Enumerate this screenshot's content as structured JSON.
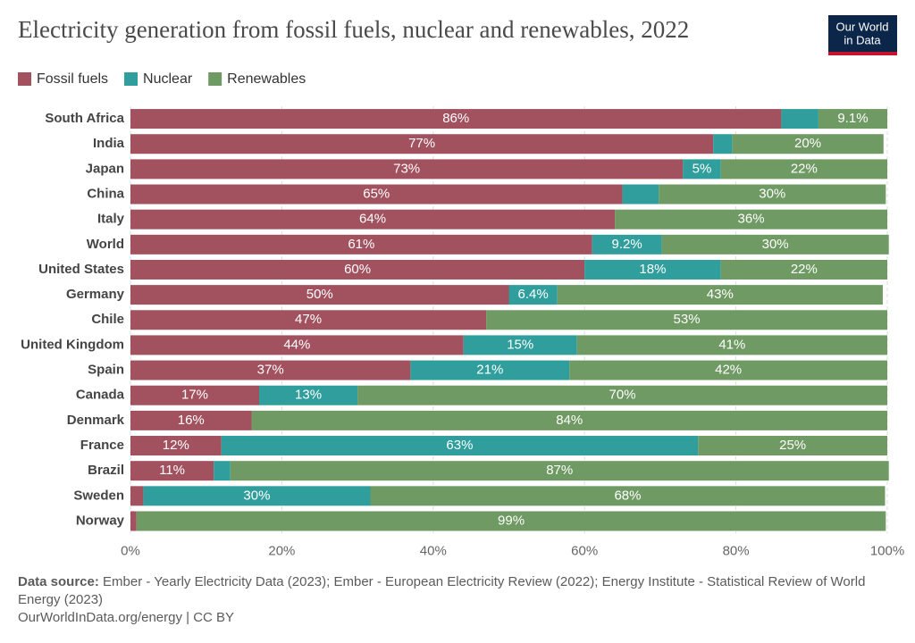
{
  "chart_data": {
    "type": "stacked-bar-horizontal",
    "title": "Electricity generation from fossil fuels, nuclear and renewables, 2022",
    "logo": [
      "Our World",
      "in Data"
    ],
    "legend": "top-left",
    "grid": true,
    "categories": [
      "South Africa",
      "India",
      "Japan",
      "China",
      "Italy",
      "World",
      "United States",
      "Germany",
      "Chile",
      "United Kingdom",
      "Spain",
      "Canada",
      "Denmark",
      "France",
      "Brazil",
      "Sweden",
      "Norway"
    ],
    "series": [
      {
        "name": "Fossil fuels",
        "color": "#a2515f",
        "values": [
          86,
          77,
          73,
          65,
          64,
          61,
          60,
          50,
          47,
          44,
          37,
          17,
          16,
          12,
          11,
          1.7,
          0.8
        ],
        "value_labels": [
          "86%",
          "77%",
          "73%",
          "65%",
          "64%",
          "61%",
          "60%",
          "50%",
          "47%",
          "44%",
          "37%",
          "17%",
          "16%",
          "12%",
          "11%",
          null,
          null
        ]
      },
      {
        "name": "Nuclear",
        "color": "#2f9e9c",
        "values": [
          4.9,
          2.5,
          5,
          4.8,
          0,
          9.2,
          18,
          6.4,
          0,
          15,
          21,
          13,
          0,
          63,
          2.2,
          30,
          0
        ],
        "value_labels": [
          null,
          null,
          "5%",
          null,
          null,
          "9.2%",
          "18%",
          "6.4%",
          null,
          "15%",
          "21%",
          "13%",
          null,
          "63%",
          null,
          "30%",
          null
        ]
      },
      {
        "name": "Renewables",
        "color": "#6f9a63",
        "values": [
          9.1,
          20,
          22,
          30,
          36,
          30,
          22,
          43,
          53,
          41,
          42,
          70,
          84,
          25,
          87,
          68,
          99
        ],
        "value_labels": [
          "9.1%",
          "20%",
          "22%",
          "30%",
          "36%",
          "30%",
          "22%",
          "43%",
          "53%",
          "41%",
          "42%",
          "70%",
          "84%",
          "25%",
          "87%",
          "68%",
          "99%"
        ]
      }
    ],
    "xlim": [
      0,
      100
    ],
    "xticks": [
      {
        "value": 0,
        "label": "0%"
      },
      {
        "value": 20,
        "label": "20%"
      },
      {
        "value": 40,
        "label": "40%"
      },
      {
        "value": 60,
        "label": "60%"
      },
      {
        "value": 80,
        "label": "80%"
      },
      {
        "value": 100,
        "label": "100%"
      }
    ],
    "source_label": "Data source:",
    "source": "Ember - Yearly Electricity Data (2023); Ember - European Electricity Review (2022); Energy Institute - Statistical Review of World Energy (2023)",
    "credit": "OurWorldInData.org/energy | CC BY"
  }
}
